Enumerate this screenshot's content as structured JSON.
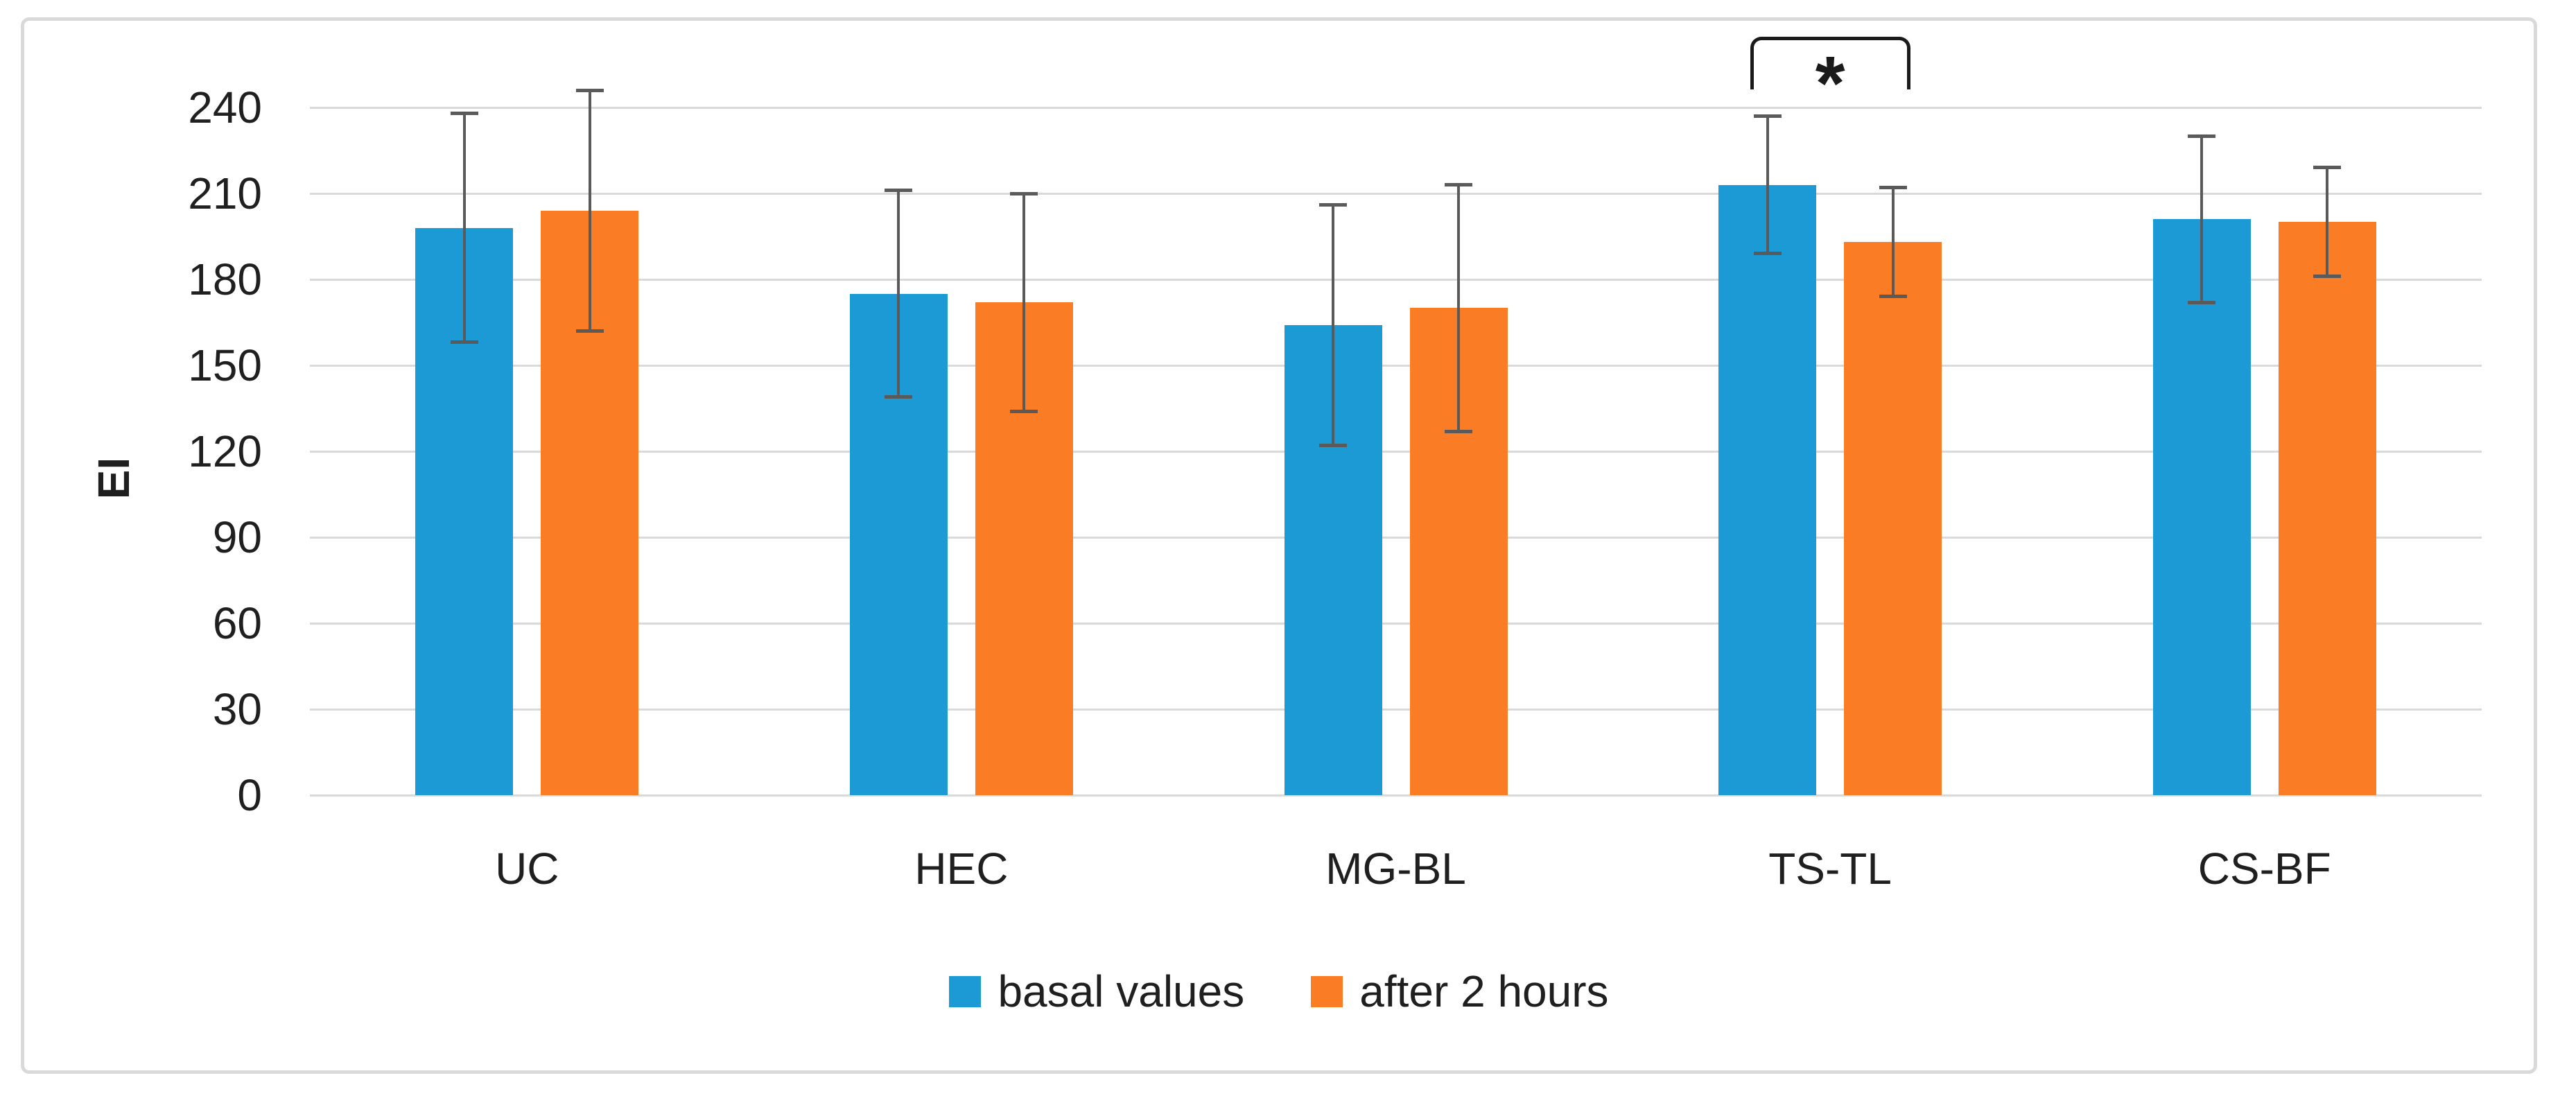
{
  "chart_data": {
    "type": "bar",
    "title": "",
    "categories": [
      "UC",
      "HEC",
      "MG-BL",
      "TS-TL",
      "CS-BF"
    ],
    "series": [
      {
        "name": "basal values",
        "color": "#1B9AD6",
        "values": [
          198,
          175,
          164,
          213,
          201
        ],
        "error_bars": [
          40,
          36,
          42,
          24,
          29
        ]
      },
      {
        "name": "after 2 hours",
        "color": "#FA7D25",
        "values": [
          204,
          172,
          170,
          193,
          200
        ],
        "error_bars": [
          42,
          38,
          43,
          19,
          19
        ]
      }
    ],
    "xlabel": "",
    "ylabel": "EI",
    "ylim": [
      0,
      263
    ],
    "yticks": [
      0,
      30,
      60,
      90,
      120,
      150,
      180,
      210,
      240
    ],
    "grid": true,
    "legend_position": "bottom-center",
    "annotations": [
      {
        "type": "significance-bracket",
        "category": "TS-TL",
        "label": "*",
        "between": [
          "basal values",
          "after 2 hours"
        ]
      }
    ]
  },
  "style": {
    "background": "#FFFFFF",
    "frame_border": "#D9D9D9",
    "gridline": "#D9D9D9",
    "error_bar": "#5A5A5A",
    "text": "#1F1F1F",
    "bracket": "#1A1A1A"
  }
}
